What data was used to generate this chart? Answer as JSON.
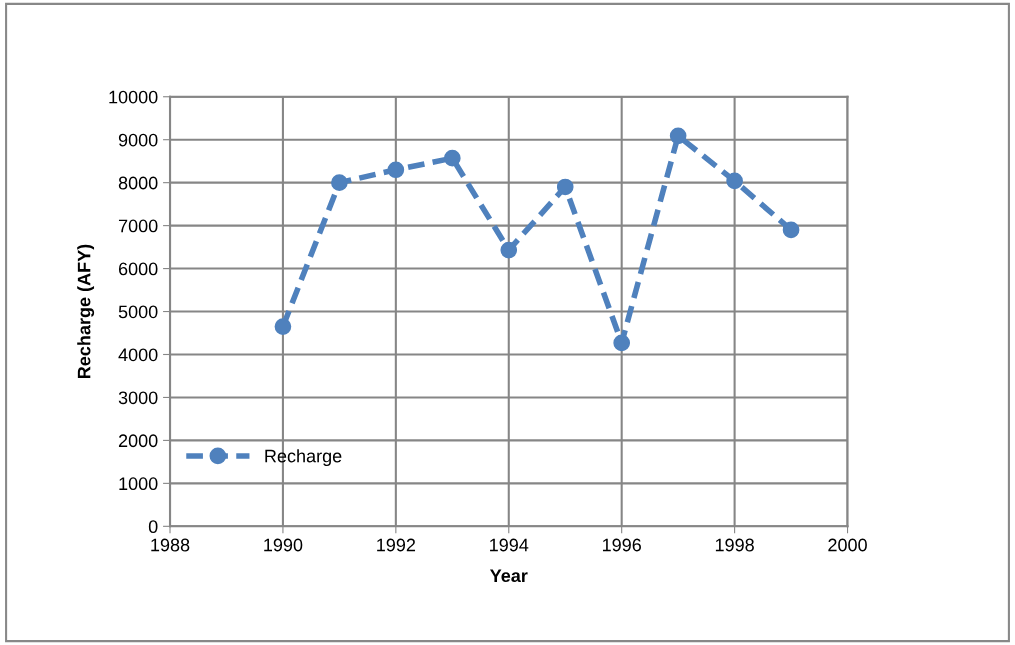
{
  "chart_data": {
    "type": "line",
    "xlabel": "Year",
    "ylabel": "Recharge (AFY)",
    "x": [
      1990,
      1991,
      1992,
      1993,
      1994,
      1995,
      1996,
      1997,
      1998,
      1999
    ],
    "series": [
      {
        "name": "Recharge",
        "color": "#4f81bd",
        "values": [
          4650,
          8000,
          8300,
          8570,
          6430,
          7900,
          4270,
          9090,
          8040,
          6900
        ]
      }
    ],
    "xlim": [
      1988,
      2000
    ],
    "xticks": [
      1988,
      1990,
      1992,
      1994,
      1996,
      1998,
      2000
    ],
    "ylim": [
      0,
      10000
    ],
    "yticks": [
      0,
      1000,
      2000,
      3000,
      4000,
      5000,
      6000,
      7000,
      8000,
      9000,
      10000
    ],
    "grid": true,
    "legend": "left",
    "marker": "circle",
    "line_style": "dashed"
  }
}
